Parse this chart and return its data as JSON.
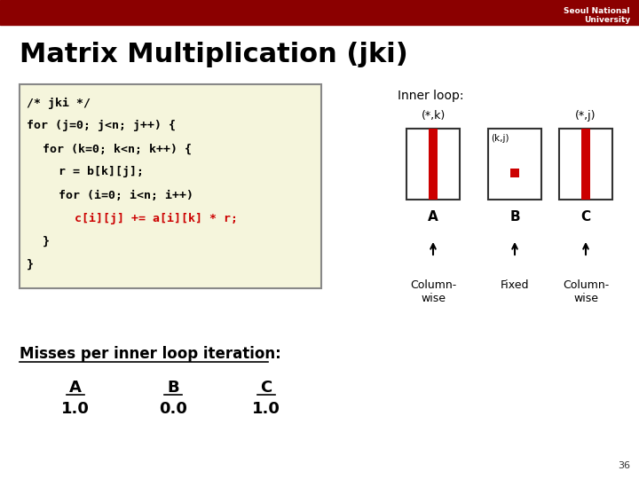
{
  "title": "Matrix Multiplication (jki)",
  "bg_color": "#ffffff",
  "header_color": "#8B0000",
  "header_text": "Seoul National\nUniversity",
  "code_bg": "#f5f5dc",
  "code_lines": [
    {
      "text": "/* jki */",
      "color": "#000000",
      "indent": 0
    },
    {
      "text": "for (j=0; j<n; j++) {",
      "color": "#000000",
      "indent": 0
    },
    {
      "text": "for (k=0; k<n; k++) {",
      "color": "#000000",
      "indent": 1
    },
    {
      "text": "r = b[k][j];",
      "color": "#000000",
      "indent": 2
    },
    {
      "text": "for (i=0; i<n; i++)",
      "color": "#000000",
      "indent": 2
    },
    {
      "text": "c[i][j] += a[i][k] * r;",
      "color": "#cc0000",
      "indent": 3
    },
    {
      "text": "}",
      "color": "#000000",
      "indent": 1
    },
    {
      "text": "}",
      "color": "#000000",
      "indent": 0
    }
  ],
  "inner_loop_label": "Inner loop:",
  "matrix_A_label": "(*,k)",
  "matrix_B_label": "(k,j)",
  "matrix_C_label": "(*,j)",
  "matrix_A_sublabel": "A",
  "matrix_B_sublabel": "B",
  "matrix_C_sublabel": "C",
  "matrix_A_desc": "Column-\nwise",
  "matrix_B_desc": "Fixed",
  "matrix_C_desc": "Column-\nwise",
  "misses_title": "Misses per inner loop iteration:",
  "miss_labels": [
    "A",
    "B",
    "C"
  ],
  "miss_values": [
    "1.0",
    "0.0",
    "1.0"
  ],
  "slide_number": "36"
}
